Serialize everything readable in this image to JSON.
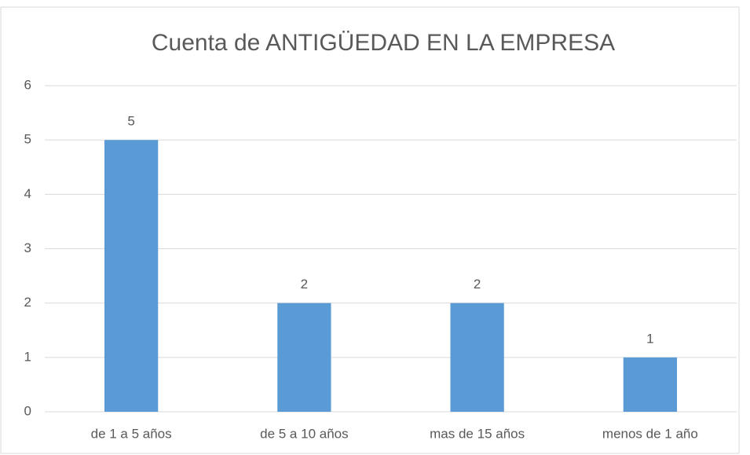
{
  "chart_data": {
    "type": "bar",
    "title": "Cuenta de ANTIGÜEDAD EN LA EMPRESA",
    "categories": [
      "de 1 a 5 años",
      "de 5 a 10 años",
      "mas de 15 años",
      "menos de 1 año"
    ],
    "values": [
      5,
      2,
      2,
      1
    ],
    "color": "#5b9bd5",
    "ylim": [
      0,
      6
    ],
    "yticks": [
      0,
      1,
      2,
      3,
      4,
      5,
      6
    ],
    "grid": true
  }
}
